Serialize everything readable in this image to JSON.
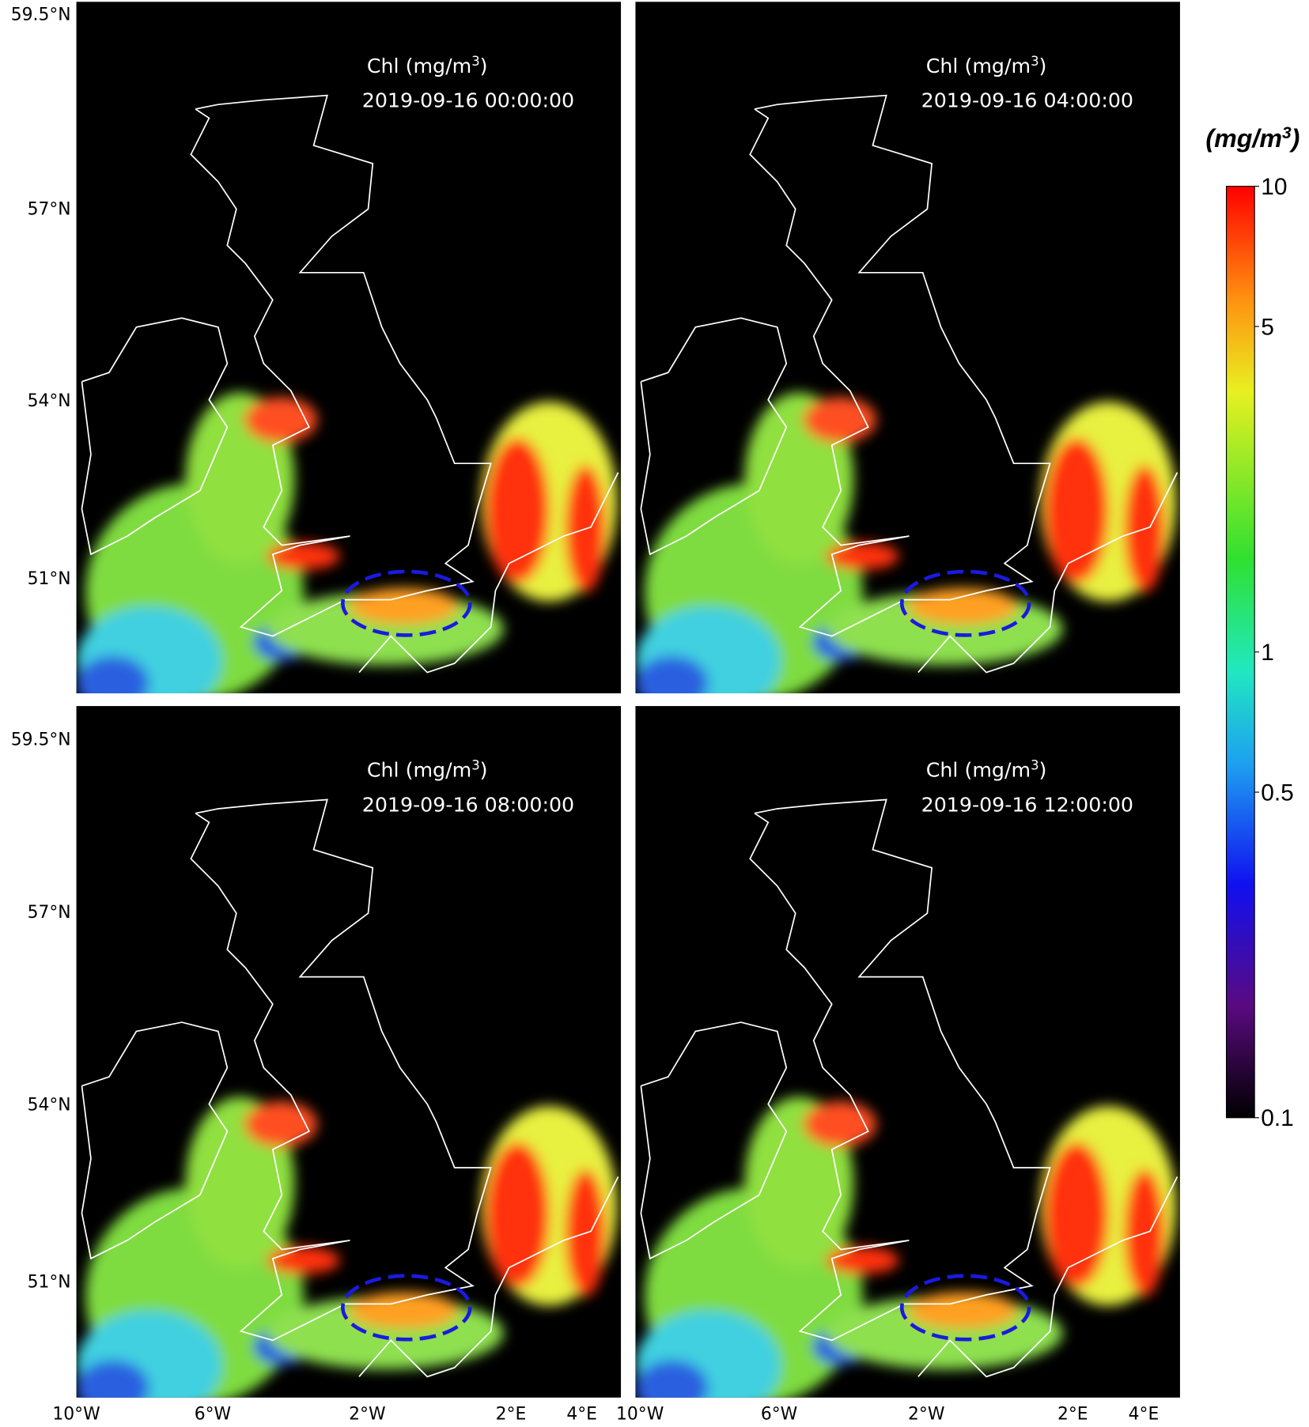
{
  "panels": [
    {
      "title": {
        "text": "Chl (mg/m",
        "sup": "3",
        "close": ")"
      },
      "timestamp": "2019-09-16 00:00:00"
    },
    {
      "title": {
        "text": "Chl (mg/m",
        "sup": "3",
        "close": ")"
      },
      "timestamp": "2019-09-16 04:00:00"
    },
    {
      "title": {
        "text": "Chl (mg/m",
        "sup": "3",
        "close": ")"
      },
      "timestamp": "2019-09-16 08:00:00"
    },
    {
      "title": {
        "text": "Chl (mg/m",
        "sup": "3",
        "close": ")"
      },
      "timestamp": "2019-09-16 12:00:00"
    }
  ],
  "lat_labels": {
    "top": [
      "59.5°N",
      "57°N",
      "54°N",
      "51°N"
    ],
    "bottom": [
      "59.5°N",
      "57°N",
      "54°N",
      "51°N"
    ]
  },
  "lon_labels": {
    "left": [
      "10°W",
      "6°W",
      "2°W",
      "2°E",
      "4°E"
    ],
    "right": [
      "10°W",
      "6°W",
      "2°W",
      "2°E",
      "4°E"
    ]
  },
  "colorbar": {
    "unit": {
      "text": "(mg/m",
      "sup": "3",
      "close": ")"
    },
    "ticks": [
      10,
      5,
      1,
      0.5,
      0.1
    ],
    "lim": [
      0.1,
      10
    ],
    "log": true
  }
}
